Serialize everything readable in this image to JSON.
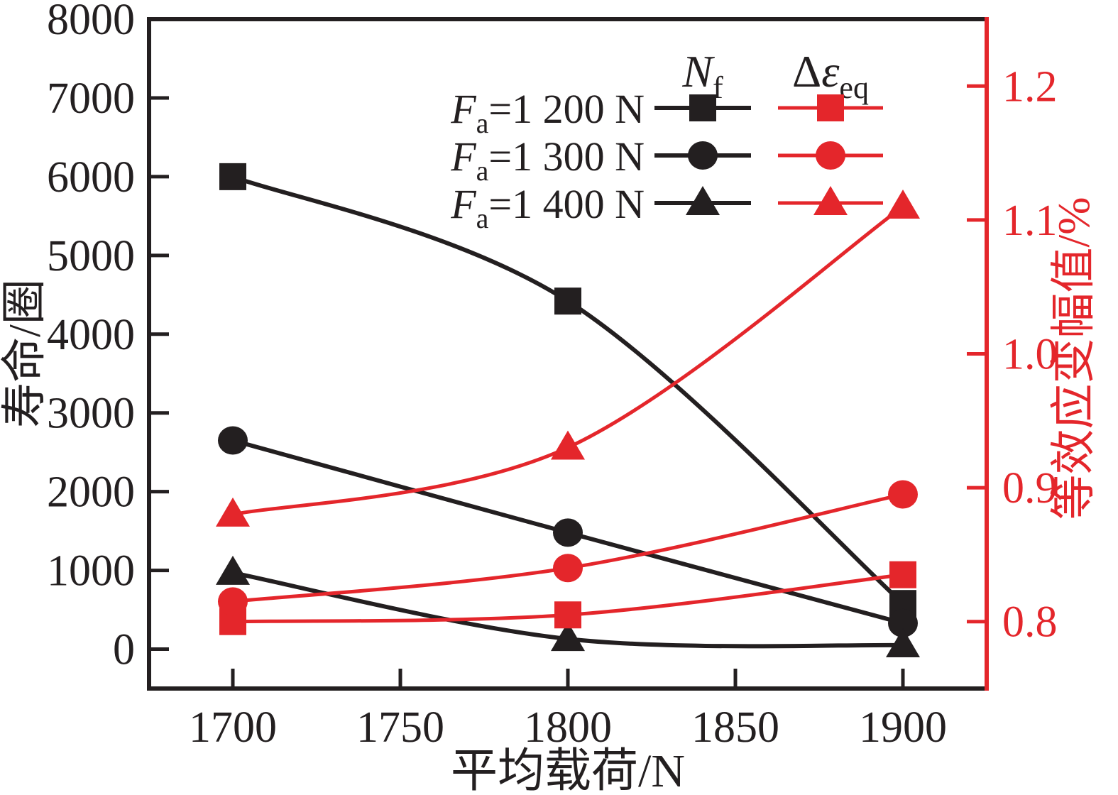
{
  "figure": {
    "background": "#ffffff",
    "colors": {
      "black": "#231f20",
      "red": "#e4262b"
    }
  },
  "chart_data": {
    "type": "line",
    "title": "",
    "x": [
      1700,
      1800,
      1900
    ],
    "xlabel": "平均载荷/N",
    "ylabel_left": "寿命/圈",
    "ylabel_right": "等效应变幅值/%",
    "axes": {
      "x": {
        "ticks": [
          "1700",
          "1750",
          "1800",
          "1850",
          "1900"
        ],
        "range": [
          1675,
          1925
        ]
      },
      "y_left": {
        "ticks": [
          "0",
          "1000",
          "2000",
          "3000",
          "4000",
          "5000",
          "6000",
          "7000",
          "8000"
        ],
        "range": [
          -500,
          8000
        ]
      },
      "y_right": {
        "ticks": [
          "0.8",
          "0.9",
          "1.0",
          "1.1",
          "1.2"
        ],
        "range": [
          0.75,
          1.25
        ]
      }
    },
    "grid": false,
    "legend_position": "top-center-inside",
    "legend": {
      "columns": [
        {
          "title_prefix": "",
          "title_main": "N",
          "title_sub": "f",
          "color": "#231f20"
        },
        {
          "title_prefix": "Δ",
          "title_main": "ε",
          "title_sub": "eq",
          "color": "#231f20"
        }
      ],
      "rows": [
        {
          "var": "F",
          "var_sub": "a",
          "rest": "=1 200 N"
        },
        {
          "var": "F",
          "var_sub": "a",
          "rest": "=1 300 N"
        },
        {
          "var": "F",
          "var_sub": "a",
          "rest": "=1 400 N"
        }
      ]
    },
    "series": [
      {
        "name": "Fa=1 200 N",
        "group": "Nf",
        "axis": "left",
        "marker": "square",
        "color": "#231f20",
        "values": [
          6000,
          4420,
          580
        ]
      },
      {
        "name": "Fa=1 300 N",
        "group": "Nf",
        "axis": "left",
        "marker": "circle",
        "color": "#231f20",
        "values": [
          2650,
          1480,
          330
        ]
      },
      {
        "name": "Fa=1 400 N",
        "group": "Nf",
        "axis": "left",
        "marker": "triangle",
        "color": "#231f20",
        "values": [
          970,
          130,
          50
        ]
      },
      {
        "name": "Fa=1 200 N",
        "group": "Δεeq",
        "axis": "right",
        "marker": "square",
        "color": "#e4262b",
        "values": [
          0.8,
          0.805,
          0.835
        ]
      },
      {
        "name": "Fa=1 300 N",
        "group": "Δεeq",
        "axis": "right",
        "marker": "circle",
        "color": "#e4262b",
        "values": [
          0.815,
          0.84,
          0.895
        ]
      },
      {
        "name": "Fa=1 400 N",
        "group": "Δεeq",
        "axis": "right",
        "marker": "triangle",
        "color": "#e4262b",
        "values": [
          0.88,
          0.93,
          1.11
        ]
      }
    ]
  }
}
